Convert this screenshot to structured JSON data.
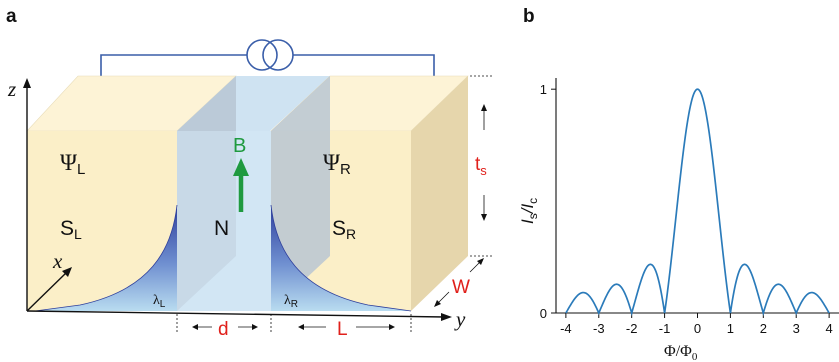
{
  "panel_a": {
    "letter": "a",
    "axis_z": "z",
    "axis_x": "x",
    "axis_y": "y",
    "psi_left": "Ψ",
    "psi_left_sub": "L",
    "psi_right": "Ψ",
    "psi_right_sub": "R",
    "s_left": "S",
    "s_left_sub": "L",
    "s_right": "S",
    "s_right_sub": "R",
    "normal": "N",
    "field": "B",
    "lambda_left": "λ",
    "lambda_left_sub": "L",
    "lambda_right": "λ",
    "lambda_right_sub": "R",
    "dim_d": "d",
    "dim_L": "L",
    "dim_W": "W",
    "dim_ts": "t",
    "dim_ts_sub": "s",
    "colors": {
      "superconductor_front": "#fbefc8",
      "superconductor_top": "#fdf3d6",
      "superconductor_side": "#e6d6ac",
      "normal_barrier": "#d2e6f4",
      "decay_profile": "#2e3f9c",
      "circuit_wire": "#3a5ea9",
      "field_arrow": "#1f9a3f",
      "dimension_red": "#e0201b"
    }
  },
  "panel_b": {
    "letter": "b",
    "ylabel_main": "I",
    "ylabel_sub1": "s",
    "ylabel_slash": "/I",
    "ylabel_sub2": "c",
    "xlabel_main": "Φ/Φ",
    "xlabel_sub": "0"
  },
  "chart_data": {
    "type": "line",
    "title": "",
    "xlabel": "Φ/Φ0",
    "ylabel": "Is/Ic",
    "xlim": [
      -4.3,
      4.3
    ],
    "ylim": [
      0,
      1.05
    ],
    "xticks": [
      -4,
      -3,
      -2,
      -1,
      0,
      1,
      2,
      3,
      4
    ],
    "yticks": [
      0,
      1
    ],
    "xtick_labels": [
      "-4",
      "-3",
      "-2",
      "-1",
      "0",
      "1",
      "2",
      "3",
      "4"
    ],
    "ytick_labels": [
      "0",
      "1"
    ],
    "grid": false,
    "line_color": "#2b7bba",
    "function": "|sin(pi*x)/(pi*x)|",
    "x": [
      -4,
      -3.5,
      -3,
      -2.5,
      -2,
      -1.5,
      -1,
      -0.5,
      0,
      0.5,
      1,
      1.5,
      2,
      2.5,
      3,
      3.5,
      4
    ],
    "y": [
      0,
      0.09,
      0,
      0.127,
      0,
      0.212,
      0,
      0.637,
      1,
      0.637,
      0,
      0.212,
      0,
      0.127,
      0,
      0.09,
      0
    ]
  }
}
